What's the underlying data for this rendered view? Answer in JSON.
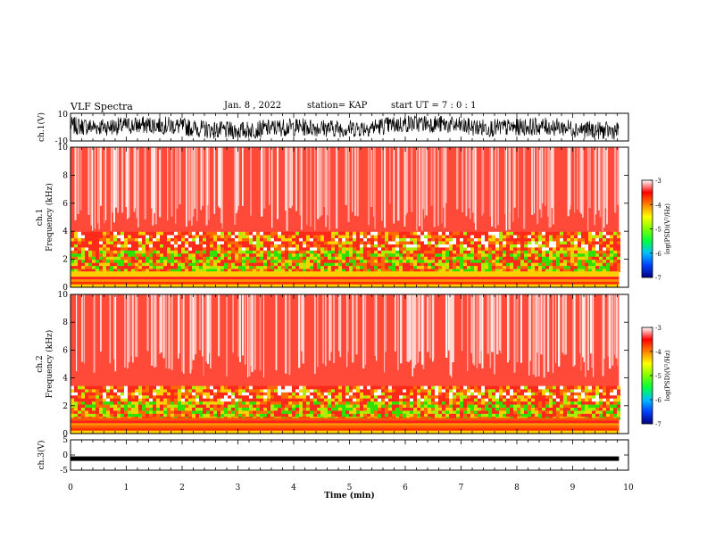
{
  "header": {
    "title": "VLF Spectra",
    "date": "Jan. 8 , 2022",
    "station": "station= KAP",
    "start": "start UT = 7 : 0 : 1"
  },
  "chart_data": [
    {
      "type": "line",
      "panel": "ch1-waveform",
      "ylabel": "ch.1(V)",
      "ylim": [
        -10,
        10
      ],
      "yticks": [
        "10",
        "-10"
      ],
      "x_range_min": [
        0,
        9.83
      ],
      "description_note": "",
      "color": "#000000"
    },
    {
      "type": "heatmap",
      "panel": "ch1-spectrogram",
      "ylabel": [
        "ch.1",
        "Frequency (kHz)"
      ],
      "ylim": [
        0,
        10
      ],
      "yticks": [
        "0",
        "2",
        "4",
        "6",
        "8",
        "10"
      ],
      "x_range_min": [
        0,
        9.83
      ],
      "colorbar": {
        "label": "log(PSD)(V²/Hz)",
        "range": [
          -7,
          -3
        ],
        "ticks": [
          "-3",
          "-4",
          "-5",
          "-6",
          "-7"
        ],
        "colors": [
          "#000080",
          "#0040ff",
          "#00c0ff",
          "#00ff40",
          "#80ff00",
          "#ffff00",
          "#ff8000",
          "#ff0000",
          "#ffffff"
        ]
      }
    },
    {
      "type": "heatmap",
      "panel": "ch2-spectrogram",
      "ylabel": [
        "ch.2",
        "Frequency (kHz)"
      ],
      "ylim": [
        0,
        10
      ],
      "yticks": [
        "0",
        "2",
        "4",
        "6",
        "8",
        "10"
      ],
      "x_range_min": [
        0,
        9.83
      ],
      "colorbar": {
        "label": "log(PSD)(V²/Hz)",
        "range": [
          -7,
          -3
        ],
        "ticks": [
          "-3",
          "-4",
          "-5",
          "-6",
          "-7"
        ]
      }
    },
    {
      "type": "line",
      "panel": "ch3-waveform",
      "ylabel": "ch.3(V)",
      "ylim": [
        -5,
        5
      ],
      "yticks": [
        "5",
        "0",
        "-5"
      ],
      "x_range_min": [
        0,
        9.83
      ],
      "level_v": -1.2,
      "color": "#000000"
    }
  ],
  "x_axis": {
    "label": "Time (min)",
    "range": [
      0,
      10
    ],
    "ticks": [
      "0",
      "1",
      "2",
      "3",
      "4",
      "5",
      "6",
      "7",
      "8",
      "9",
      "10"
    ]
  }
}
